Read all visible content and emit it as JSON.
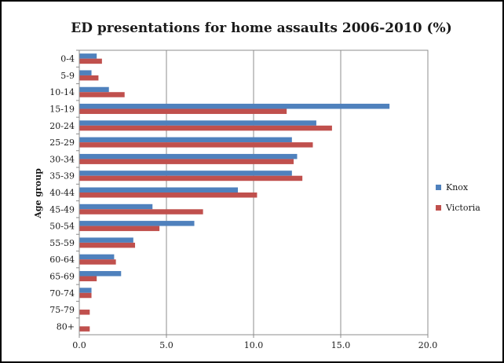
{
  "chart_data": {
    "type": "bar",
    "orientation": "horizontal",
    "title": "ED presentations for home assaults 2006-2010 (%)",
    "xlabel": "",
    "ylabel": "Age group",
    "categories": [
      "0-4",
      "5-9",
      "10-14",
      "15-19",
      "20-24",
      "25-29",
      "30-34",
      "35-39",
      "40-44",
      "45-49",
      "50-54",
      "55-59",
      "60-64",
      "65-69",
      "70-74",
      "75-79",
      "80+"
    ],
    "series": [
      {
        "name": "Knox",
        "color": "#4f81bd",
        "values": [
          1.0,
          0.7,
          1.7,
          17.8,
          13.6,
          12.2,
          12.5,
          12.2,
          9.1,
          4.2,
          6.6,
          3.1,
          2.0,
          2.4,
          0.7,
          0.0,
          0.0
        ]
      },
      {
        "name": "Victoria",
        "color": "#c0504d",
        "values": [
          1.3,
          1.1,
          2.6,
          11.9,
          14.5,
          13.4,
          12.3,
          12.8,
          10.2,
          7.1,
          4.6,
          3.2,
          2.1,
          1.0,
          0.7,
          0.6,
          0.6
        ]
      }
    ],
    "xlim": [
      0,
      20
    ],
    "xticks": [
      "0.0",
      "5.0",
      "10.0",
      "15.0",
      "20.0"
    ],
    "grid": true,
    "legend": "right"
  }
}
